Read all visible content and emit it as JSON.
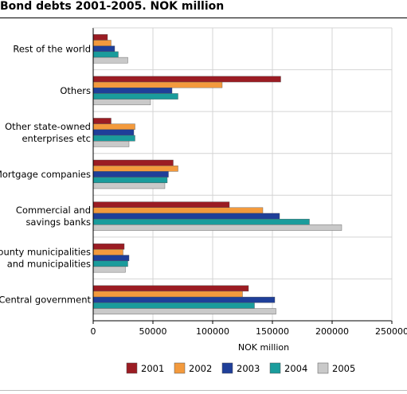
{
  "chart_data": {
    "type": "bar",
    "orientation": "horizontal",
    "title": "Bond debts 2001-2005. NOK million",
    "xlabel": "NOK million",
    "ylabel": "",
    "xlim": [
      0,
      250000
    ],
    "x_ticks": [
      "0",
      "50000",
      "100000",
      "150000",
      "200000",
      "250000"
    ],
    "grid": "vertical",
    "legend_position": "bottom",
    "categories": [
      [
        "Rest of the world"
      ],
      [
        "Others"
      ],
      [
        "Other state-owned",
        "enterprises etc"
      ],
      [
        "Mortgage companies"
      ],
      [
        "Commercial and",
        "savings banks"
      ],
      [
        "County municipalities",
        "and municipalities"
      ],
      [
        "Central government"
      ]
    ],
    "series": [
      {
        "name": "2001",
        "color": "#9b1c23",
        "values": [
          12000,
          157000,
          15000,
          67000,
          114000,
          26000,
          130000
        ]
      },
      {
        "name": "2002",
        "color": "#f39a3d",
        "values": [
          15000,
          108000,
          35000,
          71000,
          142000,
          25000,
          125000
        ]
      },
      {
        "name": "2003",
        "color": "#1f3f99",
        "values": [
          18000,
          66000,
          34000,
          63000,
          156000,
          30000,
          152000
        ]
      },
      {
        "name": "2004",
        "color": "#1a9c9c",
        "values": [
          21000,
          71000,
          35000,
          62000,
          181000,
          29000,
          135000
        ]
      },
      {
        "name": "2005",
        "color": "#c9c9c9",
        "values": [
          29000,
          48000,
          30000,
          60000,
          208000,
          27000,
          153000
        ]
      }
    ]
  }
}
